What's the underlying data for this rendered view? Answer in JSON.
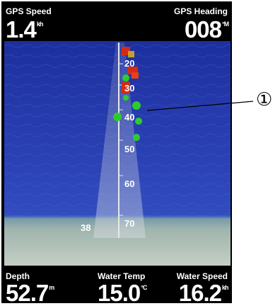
{
  "header": {
    "left": {
      "label": "GPS Speed",
      "value": "1.4",
      "unit": "kh"
    },
    "right": {
      "label": "GPS Heading",
      "value": "008",
      "unit": "°M"
    }
  },
  "footer": {
    "items": [
      {
        "label": "Depth",
        "value": "52.7",
        "unit": "m"
      },
      {
        "label": "Water Temp",
        "value": "15.0",
        "unit": "°C"
      },
      {
        "label": "Water Speed",
        "value": "16.2",
        "unit": "kh"
      }
    ]
  },
  "sonar": {
    "depth_labels": [
      "20",
      "30",
      "40",
      "50",
      "60",
      "70"
    ],
    "bottom_depth": "38",
    "colors": {
      "water": "#2a3fb5",
      "seabed": "#a9b8b0",
      "fish_green": "#2ecb2e",
      "fish_red": "#d52a14"
    }
  },
  "callout": {
    "symbol": "①"
  }
}
